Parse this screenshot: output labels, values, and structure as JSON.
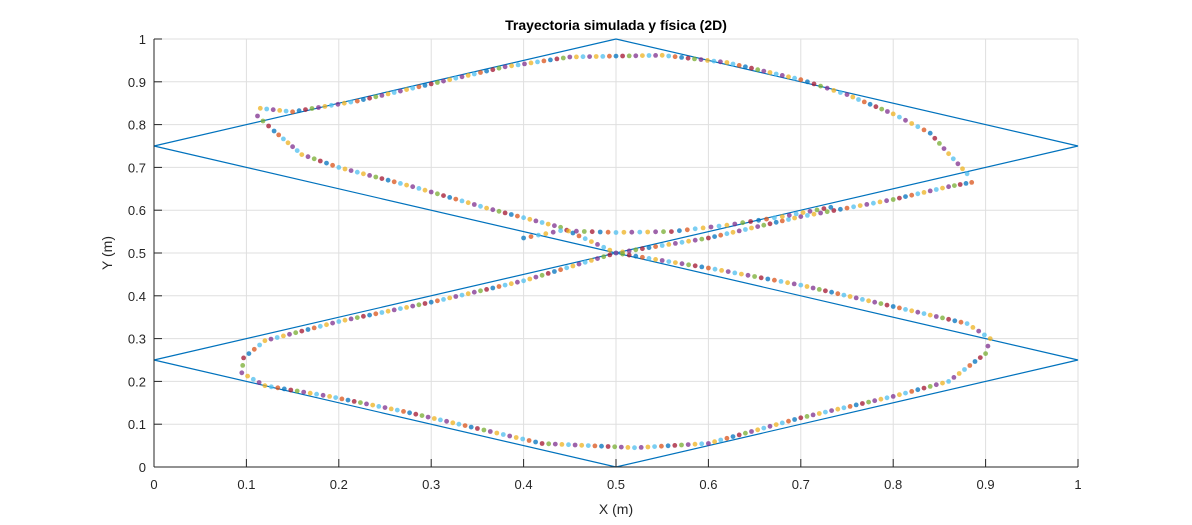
{
  "chart_data": {
    "type": "scatter",
    "title": "Trayectoria simulada y física (2D)",
    "xlabel": "X (m)",
    "ylabel": "Y (m)",
    "xlim": [
      0,
      1
    ],
    "ylim": [
      0,
      1
    ],
    "xticks": [
      "0",
      "0.1",
      "0.2",
      "0.3",
      "0.4",
      "0.5",
      "0.6",
      "0.7",
      "0.8",
      "0.9",
      "1"
    ],
    "yticks": [
      "0",
      "0.1",
      "0.2",
      "0.3",
      "0.4",
      "0.5",
      "0.6",
      "0.7",
      "0.8",
      "0.9",
      "1"
    ],
    "grid": true,
    "reference_path": {
      "color": "#0072BD",
      "points": [
        [
          0.5,
          0.5
        ],
        [
          1.0,
          0.75
        ],
        [
          0.5,
          1.0
        ],
        [
          0.0,
          0.75
        ],
        [
          0.5,
          0.5
        ],
        [
          1.0,
          0.25
        ],
        [
          0.5,
          0.0
        ],
        [
          0.0,
          0.25
        ],
        [
          0.5,
          0.5
        ]
      ]
    },
    "trajectory": {
      "waypoints": [
        [
          0.5,
          0.5
        ],
        [
          0.6,
          0.535
        ],
        [
          0.7,
          0.585
        ],
        [
          0.8,
          0.625
        ],
        [
          0.86,
          0.655
        ],
        [
          0.885,
          0.665
        ],
        [
          0.88,
          0.685
        ],
        [
          0.865,
          0.72
        ],
        [
          0.84,
          0.78
        ],
        [
          0.8,
          0.825
        ],
        [
          0.75,
          0.87
        ],
        [
          0.7,
          0.905
        ],
        [
          0.62,
          0.945
        ],
        [
          0.55,
          0.962
        ],
        [
          0.45,
          0.958
        ],
        [
          0.38,
          0.935
        ],
        [
          0.3,
          0.895
        ],
        [
          0.22,
          0.855
        ],
        [
          0.15,
          0.83
        ],
        [
          0.115,
          0.838
        ],
        [
          0.112,
          0.82
        ],
        [
          0.13,
          0.785
        ],
        [
          0.16,
          0.73
        ],
        [
          0.2,
          0.7
        ],
        [
          0.28,
          0.655
        ],
        [
          0.36,
          0.605
        ],
        [
          0.44,
          0.56
        ],
        [
          0.5,
          0.5
        ],
        [
          0.6,
          0.465
        ],
        [
          0.7,
          0.425
        ],
        [
          0.8,
          0.375
        ],
        [
          0.88,
          0.335
        ],
        [
          0.905,
          0.3
        ],
        [
          0.9,
          0.265
        ],
        [
          0.86,
          0.2
        ],
        [
          0.8,
          0.165
        ],
        [
          0.7,
          0.115
        ],
        [
          0.6,
          0.055
        ],
        [
          0.52,
          0.045
        ],
        [
          0.42,
          0.055
        ],
        [
          0.35,
          0.09
        ],
        [
          0.27,
          0.13
        ],
        [
          0.19,
          0.165
        ],
        [
          0.12,
          0.19
        ],
        [
          0.095,
          0.22
        ],
        [
          0.097,
          0.255
        ],
        [
          0.12,
          0.295
        ],
        [
          0.2,
          0.34
        ],
        [
          0.3,
          0.385
        ],
        [
          0.4,
          0.435
        ],
        [
          0.5,
          0.5
        ]
      ],
      "crossing_arc": [
        [
          0.4,
          0.535
        ],
        [
          0.44,
          0.552
        ],
        [
          0.5,
          0.548
        ],
        [
          0.56,
          0.55
        ],
        [
          0.62,
          0.565
        ],
        [
          0.68,
          0.585
        ],
        [
          0.74,
          0.61
        ]
      ],
      "point_colors": [
        "#4DBEEE",
        "#EDB120",
        "#7E2F8E",
        "#77AC30",
        "#A2142F",
        "#0072BD",
        "#D95319",
        "#4DBEEE",
        "#EDB120",
        "#7E2F8E"
      ]
    }
  }
}
